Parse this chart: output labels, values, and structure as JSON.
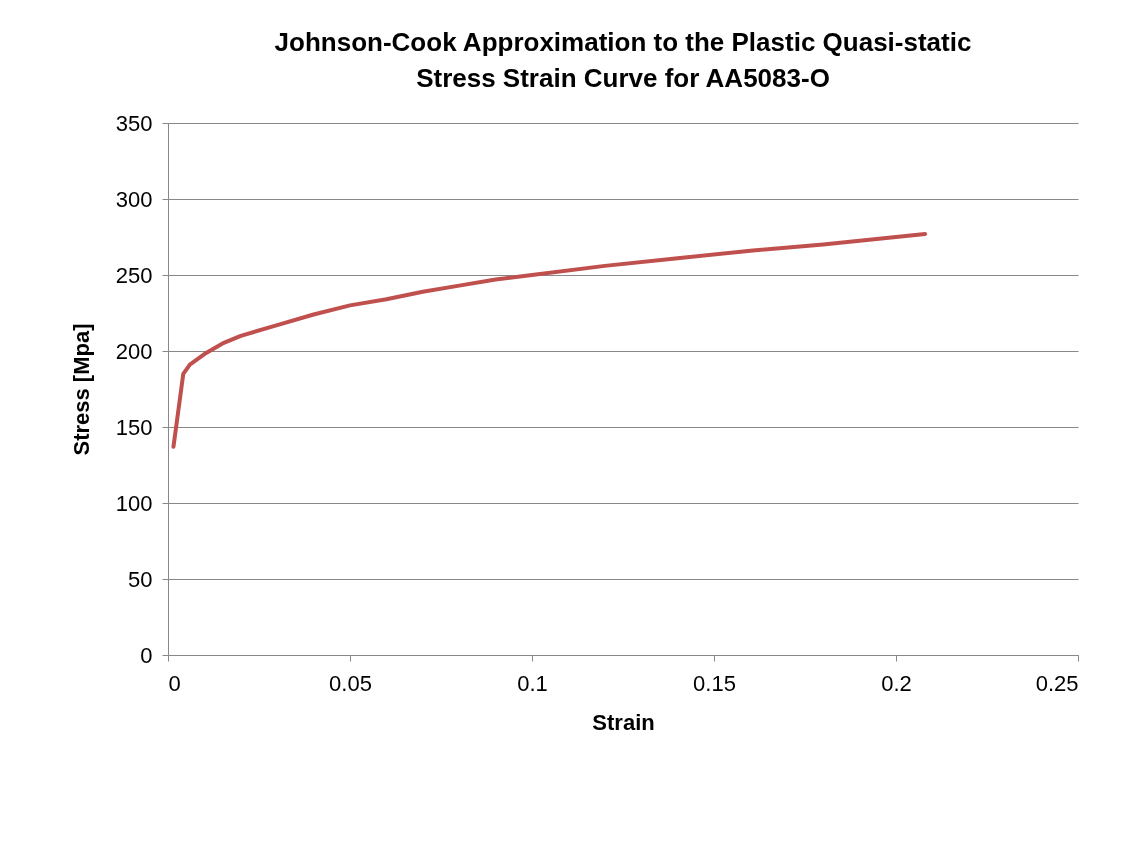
{
  "chart_data": {
    "type": "line",
    "title": "Johnson-Cook Approximation to the Plastic Quasi-static Stress Strain Curve for AA5083-O",
    "xlabel": "Strain",
    "ylabel": "Stress [Mpa]",
    "x": [
      0.0015,
      0.0042,
      0.006,
      0.01,
      0.015,
      0.02,
      0.03,
      0.04,
      0.05,
      0.06,
      0.07,
      0.08,
      0.09,
      0.1,
      0.12,
      0.14,
      0.16,
      0.18,
      0.2,
      0.208
    ],
    "series": [
      {
        "color": "#c0504d",
        "values": [
          137,
          185,
          191,
          198,
          205,
          210,
          217,
          224,
          230,
          234,
          239,
          243,
          247,
          250,
          256,
          261,
          266,
          270,
          275,
          277
        ]
      }
    ],
    "xlim": [
      0,
      0.25
    ],
    "xticks": [
      0,
      0.05,
      0.1,
      0.15,
      0.2,
      0.25
    ],
    "ylim": [
      0,
      350
    ],
    "yticks": [
      0,
      50,
      100,
      150,
      200,
      250,
      300,
      350
    ],
    "grid": "y",
    "marker": "none",
    "line_style": "solid"
  }
}
